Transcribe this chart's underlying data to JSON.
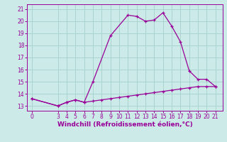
{
  "xlabel": "Windchill (Refroidissement éolien,°C)",
  "background_color": "#cceae7",
  "grid_color": "#aad4d0",
  "line_color": "#990099",
  "x_ticks": [
    0,
    3,
    4,
    5,
    6,
    7,
    8,
    9,
    10,
    11,
    12,
    13,
    14,
    15,
    16,
    17,
    18,
    19,
    20,
    21
  ],
  "y_ticks": [
    13,
    14,
    15,
    16,
    17,
    18,
    19,
    20,
    21
  ],
  "ylim": [
    12.6,
    21.4
  ],
  "xlim": [
    -0.5,
    21.8
  ],
  "line1_x": [
    0,
    3,
    4,
    5,
    6,
    7,
    9,
    11,
    12,
    13,
    14,
    15,
    16,
    17,
    18,
    19,
    20,
    21
  ],
  "line1_y": [
    13.6,
    13.0,
    13.3,
    13.5,
    13.3,
    15.0,
    18.8,
    20.5,
    20.4,
    20.0,
    20.1,
    20.7,
    19.6,
    18.3,
    15.9,
    15.2,
    15.2,
    14.6
  ],
  "line2_x": [
    0,
    3,
    4,
    5,
    6,
    7,
    8,
    9,
    10,
    11,
    12,
    13,
    14,
    15,
    16,
    17,
    18,
    19,
    20,
    21
  ],
  "line2_y": [
    13.6,
    13.0,
    13.3,
    13.5,
    13.3,
    13.4,
    13.5,
    13.6,
    13.7,
    13.8,
    13.9,
    14.0,
    14.1,
    14.2,
    14.3,
    14.4,
    14.5,
    14.6,
    14.6,
    14.6
  ]
}
